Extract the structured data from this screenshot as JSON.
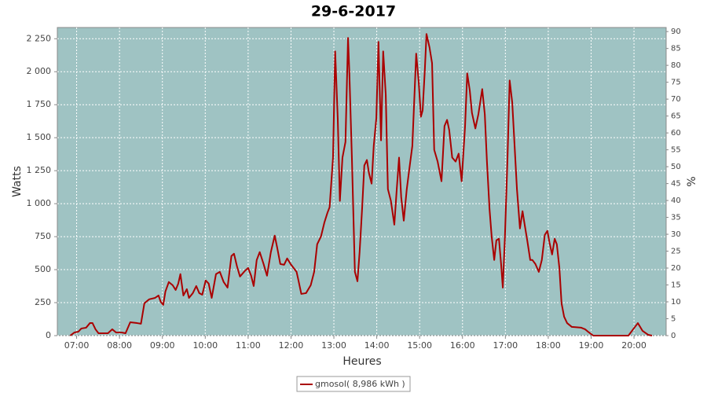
{
  "chart_data": {
    "type": "line",
    "title": "29-6-2017",
    "x_label": "Heures",
    "y_label": "Watts",
    "y2_label": "%",
    "x": [
      6.85,
      6.95,
      7.04,
      7.11,
      7.22,
      7.31,
      7.37,
      7.44,
      7.51,
      7.73,
      7.83,
      7.92,
      8.05,
      8.14,
      8.25,
      8.41,
      8.5,
      8.58,
      8.69,
      8.83,
      8.91,
      8.96,
      9.02,
      9.07,
      9.15,
      9.24,
      9.31,
      9.37,
      9.42,
      9.49,
      9.57,
      9.62,
      9.71,
      9.79,
      9.86,
      9.93,
      10.01,
      10.08,
      10.15,
      10.25,
      10.34,
      10.43,
      10.52,
      10.61,
      10.67,
      10.74,
      10.81,
      10.92,
      11.0,
      11.07,
      11.13,
      11.2,
      11.27,
      11.36,
      11.44,
      11.53,
      11.62,
      11.68,
      11.75,
      11.84,
      11.91,
      11.99,
      12.06,
      12.13,
      12.17,
      12.24,
      12.35,
      12.46,
      12.54,
      12.61,
      12.7,
      12.78,
      12.85,
      12.9,
      12.98,
      13.03,
      13.09,
      13.14,
      13.2,
      13.27,
      13.33,
      13.36,
      13.42,
      13.49,
      13.55,
      13.6,
      13.66,
      13.71,
      13.77,
      13.82,
      13.88,
      13.93,
      13.99,
      14.04,
      14.1,
      14.15,
      14.21,
      14.26,
      14.33,
      14.41,
      14.46,
      14.52,
      14.57,
      14.63,
      14.7,
      14.77,
      14.83,
      14.88,
      14.92,
      14.98,
      15.03,
      15.07,
      15.12,
      15.16,
      15.23,
      15.29,
      15.34,
      15.42,
      15.51,
      15.58,
      15.64,
      15.69,
      15.76,
      15.84,
      15.91,
      15.98,
      16.06,
      16.11,
      16.17,
      16.22,
      16.3,
      16.37,
      16.46,
      16.52,
      16.57,
      16.63,
      16.68,
      16.74,
      16.79,
      16.85,
      16.9,
      16.94,
      16.99,
      17.05,
      17.1,
      17.16,
      17.21,
      17.27,
      17.34,
      17.4,
      17.45,
      17.51,
      17.58,
      17.63,
      17.7,
      17.78,
      17.85,
      17.92,
      17.98,
      18.03,
      18.09,
      18.15,
      18.2,
      18.26,
      18.31,
      18.37,
      18.44,
      18.55,
      18.77,
      18.86,
      18.95,
      19.05,
      19.87,
      19.98,
      20.09,
      20.2,
      20.33,
      20.42
    ],
    "series": [
      {
        "name": "gmosol( 8,986 kWh )",
        "color": "#aa0000",
        "values": [
          0,
          24,
          30,
          54,
          60,
          95,
          95,
          48,
          18,
          18,
          48,
          24,
          24,
          18,
          101,
          95,
          90,
          245,
          275,
          286,
          304,
          257,
          233,
          334,
          406,
          382,
          346,
          394,
          466,
          304,
          352,
          286,
          322,
          376,
          322,
          310,
          418,
          394,
          286,
          466,
          483,
          406,
          364,
          603,
          621,
          525,
          448,
          489,
          513,
          454,
          376,
          573,
          633,
          543,
          454,
          633,
          758,
          663,
          543,
          537,
          585,
          543,
          513,
          483,
          424,
          316,
          322,
          382,
          483,
          692,
          752,
          859,
          931,
          973,
          1349,
          2154,
          1647,
          1021,
          1349,
          1468,
          2256,
          2005,
          1349,
          483,
          412,
          633,
          973,
          1289,
          1331,
          1229,
          1152,
          1438,
          1647,
          2226,
          1480,
          2154,
          1826,
          1110,
          1021,
          841,
          1080,
          1349,
          1050,
          871,
          1110,
          1289,
          1438,
          1826,
          2137,
          1916,
          1659,
          1707,
          2005,
          2286,
          2185,
          2065,
          1408,
          1319,
          1170,
          1588,
          1635,
          1558,
          1349,
          1319,
          1379,
          1170,
          1588,
          1987,
          1857,
          1689,
          1570,
          1677,
          1868,
          1677,
          1319,
          961,
          752,
          573,
          722,
          734,
          543,
          364,
          752,
          1349,
          1934,
          1767,
          1468,
          1110,
          812,
          943,
          841,
          722,
          573,
          573,
          543,
          483,
          573,
          764,
          794,
          704,
          615,
          734,
          692,
          513,
          245,
          143,
          95,
          66,
          60,
          48,
          24,
          0,
          0,
          48,
          95,
          36,
          6,
          0
        ]
      }
    ],
    "xlim": [
      6.55,
      20.75
    ],
    "xticks": [
      {
        "value": 7,
        "label": "07:00"
      },
      {
        "value": 8,
        "label": "08:00"
      },
      {
        "value": 9,
        "label": "09:00"
      },
      {
        "value": 10,
        "label": "10:00"
      },
      {
        "value": 11,
        "label": "11:00"
      },
      {
        "value": 12,
        "label": "12:00"
      },
      {
        "value": 13,
        "label": "13:00"
      },
      {
        "value": 14,
        "label": "14:00"
      },
      {
        "value": 15,
        "label": "15:00"
      },
      {
        "value": 16,
        "label": "16:00"
      },
      {
        "value": 17,
        "label": "17:00"
      },
      {
        "value": 18,
        "label": "18:00"
      },
      {
        "value": 19,
        "label": "19:00"
      },
      {
        "value": 20,
        "label": "20:00"
      }
    ],
    "ylim": [
      0,
      2335
    ],
    "yticks": [
      0,
      250,
      500,
      750,
      {
        "value": 1000,
        "label": "1 000"
      },
      {
        "value": 1250,
        "label": "1 250"
      },
      {
        "value": 1500,
        "label": "1 500"
      },
      {
        "value": 1750,
        "label": "1 750"
      },
      {
        "value": 2000,
        "label": "2 000"
      },
      {
        "value": 2250,
        "label": "2 250"
      }
    ],
    "y2lim": [
      0,
      91.2
    ],
    "y2ticks": [
      0,
      5,
      10,
      15,
      20,
      25,
      30,
      35,
      40,
      45,
      50,
      55,
      60,
      65,
      70,
      75,
      80,
      85,
      90
    ],
    "grid": true,
    "legend": "bottom",
    "plot_background": "#9fc3c3"
  }
}
